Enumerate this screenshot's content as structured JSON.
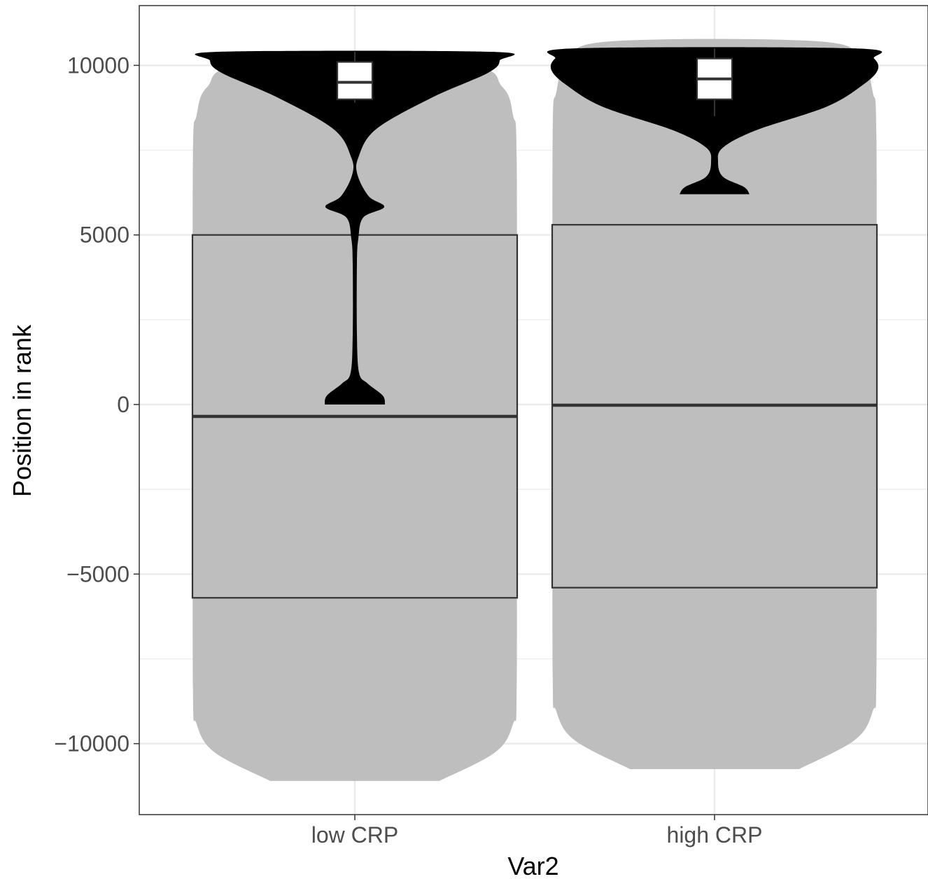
{
  "chart_data": {
    "type": "violin",
    "xlabel": "Var2",
    "ylabel": "Position in rank",
    "categories": [
      "low CRP",
      "high CRP"
    ],
    "yticks": [
      10000,
      5000,
      0,
      -5000,
      -10000
    ],
    "ytick_labels": [
      "10000",
      "5000",
      "0",
      "−5000",
      "−10000"
    ],
    "ylim": [
      -12000,
      11900
    ],
    "grid": true,
    "series": [
      {
        "role": "background",
        "fill": "#bebebe",
        "groups": [
          {
            "category": "low CRP",
            "ymin": -11100,
            "ymax": 10000,
            "box": {
              "q1": -5700,
              "median": -350,
              "q3": 5000
            }
          },
          {
            "category": "high CRP",
            "ymin": -10750,
            "ymax": 10700,
            "box": {
              "q1": -5400,
              "median": -20,
              "q3": 5300
            }
          }
        ]
      },
      {
        "role": "foreground",
        "fill": "#000000",
        "groups": [
          {
            "category": "low CRP",
            "ymin": 0,
            "ymax": 10400,
            "box": {
              "q1": 9000,
              "median": 9500,
              "q3": 10100
            }
          },
          {
            "category": "high CRP",
            "ymin": 6200,
            "ymax": 10500,
            "box": {
              "q1": 9000,
              "median": 9600,
              "q3": 10200
            }
          }
        ]
      }
    ]
  }
}
